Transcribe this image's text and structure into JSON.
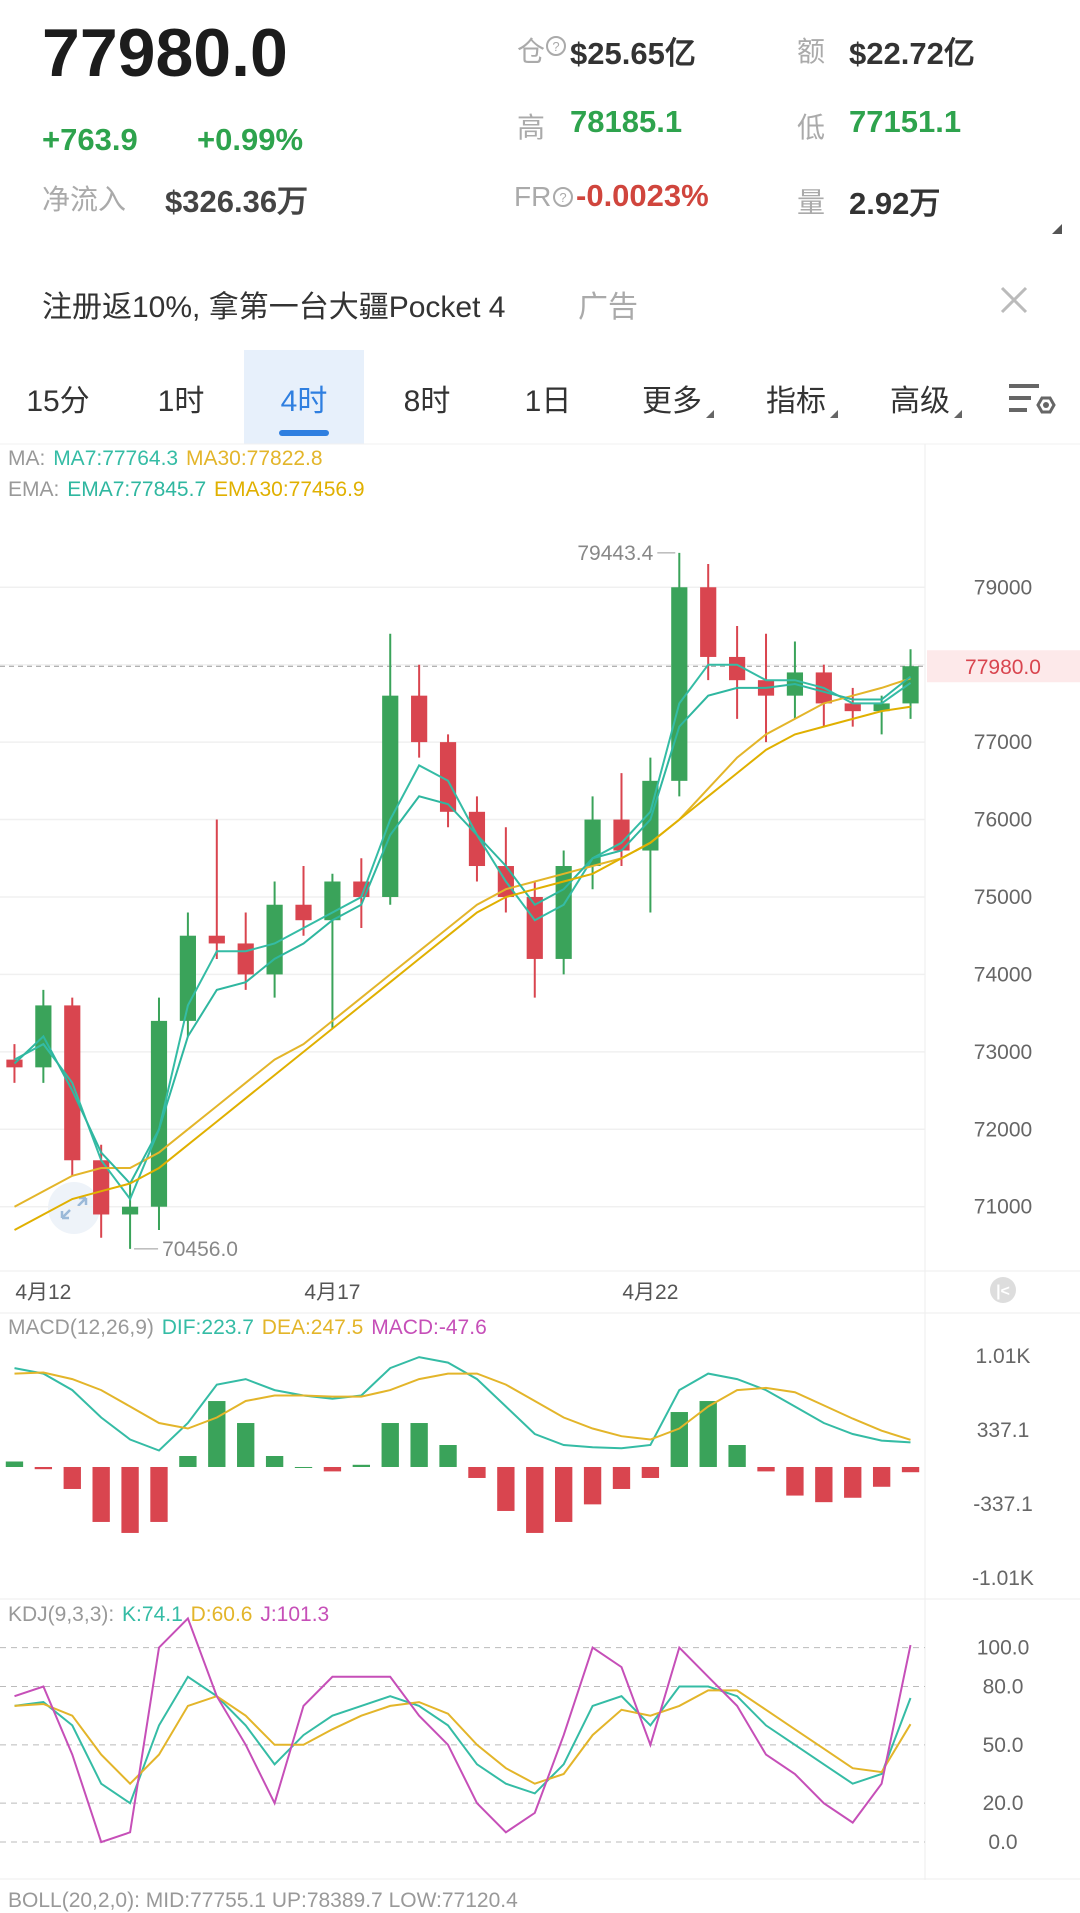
{
  "header": {
    "price": "77980.0",
    "change": "+763.9",
    "change_pct": "+0.99%",
    "net_inflow_label": "净流入",
    "net_inflow": "$326.36万",
    "stats": [
      {
        "label": "仓",
        "value": "$25.65亿"
      },
      {
        "label": "额",
        "value": "$22.72亿"
      },
      {
        "label": "高",
        "value": "78185.1"
      },
      {
        "label": "低",
        "value": "77151.1"
      },
      {
        "label": "FR",
        "value": "-0.0023%"
      },
      {
        "label": "量",
        "value": "2.92万"
      }
    ]
  },
  "ad": {
    "text": "注册返10%, 拿第一台大疆Pocket 4",
    "tag": "广告"
  },
  "tabs": [
    "15分",
    "1时",
    "4时",
    "8时",
    "1日",
    "更多",
    "指标",
    "高级"
  ],
  "active_tab": "4时",
  "chart_data": [
    {
      "type": "candlestick",
      "categories": [
        null,
        "4月12",
        null,
        null,
        null,
        null,
        null,
        null,
        null,
        null,
        null,
        "4月17",
        null,
        null,
        null,
        null,
        null,
        null,
        null,
        null,
        null,
        null,
        "4月22",
        null,
        null,
        null,
        null,
        null,
        null,
        null,
        null,
        null
      ],
      "open": [
        72900,
        72800,
        73600,
        71600,
        70900,
        71000,
        73400,
        74500,
        74400,
        74000,
        74900,
        74700,
        75200,
        75000,
        77600,
        77000,
        76100,
        75400,
        75000,
        74200,
        75400,
        76000,
        75600,
        76500,
        79000,
        78100,
        77800,
        77600,
        77900,
        77500,
        77400,
        77500
      ],
      "high": [
        73100,
        73800,
        73700,
        71800,
        71300,
        73700,
        74800,
        76000,
        74800,
        75200,
        75400,
        75300,
        75500,
        78400,
        78000,
        77100,
        76300,
        75900,
        75200,
        75600,
        76300,
        76600,
        76800,
        79443.4,
        79300,
        78500,
        78400,
        78300,
        78000,
        77700,
        77600,
        78200
      ],
      "low": [
        72600,
        72600,
        71400,
        70600,
        70456,
        70700,
        73200,
        74200,
        73800,
        73700,
        74500,
        73300,
        74600,
        74900,
        76800,
        75900,
        75200,
        74800,
        73700,
        74000,
        75100,
        75400,
        74800,
        76300,
        77800,
        77300,
        77000,
        77300,
        77200,
        77200,
        77100,
        77300
      ],
      "close": [
        72800,
        73600,
        71600,
        70900,
        71000,
        73400,
        74500,
        74400,
        74000,
        74900,
        74700,
        75200,
        75000,
        77600,
        77000,
        76100,
        75400,
        75000,
        74200,
        75400,
        76000,
        75600,
        76500,
        79000,
        78100,
        77800,
        77600,
        77900,
        77500,
        77400,
        77500,
        77980
      ],
      "up_color": "#3aa35a",
      "down_color": "#d9454f",
      "indicator_groups": [
        {
          "label": "MA:",
          "series": [
            {
              "name": "MA7:77764.3",
              "color": "#35bca5",
              "values": [
                72900,
                73100,
                72600,
                71600,
                71100,
                72000,
                73600,
                74300,
                74300,
                74400,
                74600,
                74800,
                75000,
                76000,
                76700,
                76500,
                75800,
                75200,
                74700,
                74900,
                75500,
                75700,
                76100,
                77500,
                78000,
                78000,
                77800,
                77800,
                77700,
                77500,
                77500,
                77764.3
              ]
            },
            {
              "name": "MA30:77822.8",
              "color": "#e3b52a",
              "values": [
                71000,
                71200,
                71400,
                71500,
                71500,
                71700,
                72000,
                72300,
                72600,
                72900,
                73100,
                73400,
                73700,
                74000,
                74300,
                74600,
                74900,
                75100,
                75200,
                75300,
                75400,
                75500,
                75700,
                76000,
                76400,
                76800,
                77100,
                77300,
                77500,
                77600,
                77700,
                77822.8
              ]
            }
          ]
        },
        {
          "label": "EMA:",
          "series": [
            {
              "name": "EMA7:77845.7",
              "color": "#2fb7a0",
              "values": [
                72850,
                73200,
                72500,
                71700,
                71300,
                72000,
                73200,
                73800,
                73900,
                74200,
                74400,
                74700,
                74900,
                75800,
                76300,
                76200,
                75800,
                75400,
                74900,
                75100,
                75500,
                75600,
                76000,
                77200,
                77600,
                77700,
                77700,
                77750,
                77650,
                77550,
                77550,
                77845.7
              ]
            },
            {
              "name": "EMA30:77456.9",
              "color": "#e0b000",
              "values": [
                70700,
                70900,
                71100,
                71200,
                71300,
                71500,
                71800,
                72100,
                72400,
                72700,
                73000,
                73300,
                73600,
                73900,
                74200,
                74500,
                74800,
                75000,
                75100,
                75200,
                75300,
                75500,
                75700,
                76000,
                76300,
                76600,
                76900,
                77100,
                77200,
                77300,
                77400,
                77456.9
              ]
            }
          ]
        }
      ],
      "high_label": "79443.4",
      "low_label": "70456.0",
      "last_price": {
        "value": 77980,
        "label": "77980.0"
      },
      "ylim": [
        70170,
        80850
      ],
      "yticks": [
        71000,
        72000,
        73000,
        74000,
        75000,
        76000,
        77000,
        78000,
        79000
      ],
      "grid": "solid"
    },
    {
      "type": "macd",
      "title": "MACD(12,26,9)",
      "series": [
        {
          "name": "DIF:223.7",
          "color": "#35bca5",
          "values": [
            900,
            850,
            700,
            450,
            250,
            150,
            400,
            750,
            800,
            700,
            650,
            620,
            650,
            900,
            1000,
            950,
            800,
            550,
            300,
            200,
            180,
            170,
            200,
            700,
            850,
            800,
            700,
            550,
            400,
            300,
            240,
            223.7
          ]
        },
        {
          "name": "DEA:247.5",
          "color": "#e3b52a",
          "values": [
            850,
            860,
            800,
            700,
            550,
            400,
            350,
            450,
            600,
            650,
            650,
            640,
            640,
            700,
            800,
            850,
            850,
            750,
            600,
            450,
            350,
            280,
            250,
            350,
            550,
            700,
            720,
            680,
            560,
            440,
            330,
            247.5
          ]
        }
      ],
      "histogram": {
        "name": "MACD:-47.6",
        "color": "#c64fb8",
        "values": [
          50,
          -20,
          -200,
          -500,
          -600,
          -500,
          100,
          600,
          400,
          100,
          0,
          -40,
          20,
          400,
          400,
          200,
          -100,
          -400,
          -600,
          -500,
          -340,
          -200,
          -100,
          500,
          600,
          200,
          -40,
          -260,
          -320,
          -280,
          -180,
          -47.6
        ]
      },
      "up_color": "#3aa35a",
      "down_color": "#d9454f",
      "ylim": [
        -1201,
        1401
      ],
      "yticks": [
        {
          "value": 1010,
          "label": "1.01K"
        },
        337.1,
        -337.1,
        {
          "value": -1010,
          "label": "-1.01K"
        }
      ],
      "grid": false
    },
    {
      "type": "kdj",
      "title": "KDJ(9,3,3):",
      "series": [
        {
          "name": "K:74.1",
          "color": "#35bca5",
          "values": [
            70,
            72,
            60,
            30,
            20,
            60,
            85,
            75,
            60,
            40,
            55,
            65,
            70,
            75,
            70,
            60,
            40,
            30,
            25,
            40,
            70,
            75,
            60,
            80,
            80,
            75,
            60,
            50,
            40,
            30,
            35,
            74.1
          ]
        },
        {
          "name": "D:60.6",
          "color": "#e3b52a",
          "values": [
            70,
            71,
            65,
            45,
            30,
            45,
            70,
            75,
            65,
            50,
            50,
            58,
            65,
            70,
            72,
            66,
            50,
            38,
            30,
            35,
            55,
            68,
            65,
            70,
            78,
            78,
            68,
            58,
            48,
            38,
            36,
            60.6
          ]
        },
        {
          "name": "J:101.3",
          "color": "#c64fb8",
          "values": [
            75,
            80,
            45,
            0,
            5,
            100,
            115,
            75,
            50,
            20,
            70,
            85,
            85,
            85,
            65,
            50,
            20,
            5,
            15,
            55,
            100,
            90,
            50,
            100,
            85,
            70,
            45,
            35,
            20,
            10,
            30,
            101.3
          ]
        }
      ],
      "ylim": [
        -19,
        125
      ],
      "yticks": [
        {
          "value": 100,
          "label": "100.0"
        },
        {
          "value": 80,
          "label": "80.0"
        },
        {
          "value": 50,
          "label": "50.0"
        },
        {
          "value": 20,
          "label": "20.0"
        },
        {
          "value": 0,
          "label": "0.0"
        }
      ],
      "grid": "dashed"
    }
  ],
  "footer": "BOLL(20,2,0): MID:77755.1 UP:78389.7 LOW:77120.4"
}
